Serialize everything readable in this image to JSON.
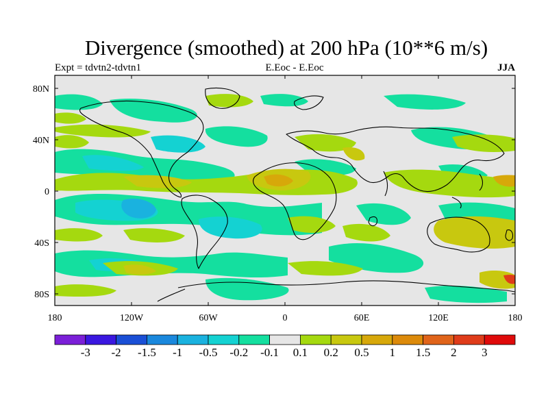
{
  "title": "Divergence (smoothed) at 200 hPa (10**6 m/s)",
  "subtitle_left": "Expt = tdvtn2-tdvtn1",
  "subtitle_center": "E.Eoc - E.Eoc",
  "subtitle_right": "JJA",
  "axes": {
    "lat_labels": [
      "80N",
      "40N",
      "0",
      "40S",
      "80S"
    ],
    "lon_labels": [
      "180",
      "120W",
      "60W",
      "0",
      "60E",
      "120E",
      "180"
    ]
  },
  "colorbar": {
    "colors": [
      "#7b1fd8",
      "#3a17e0",
      "#1a4fd6",
      "#1a88dd",
      "#1ab2df",
      "#14d2d2",
      "#14df9f",
      "#e6e6e6",
      "#a5d90f",
      "#c8c80f",
      "#d7a80a",
      "#dc8a0a",
      "#e0641a",
      "#df3c1a",
      "#df0a0a"
    ],
    "labels": [
      "-3",
      "-2",
      "-1.5",
      "-1",
      "-0.5",
      "-0.2",
      "-0.1",
      "0.1",
      "0.2",
      "0.5",
      "1",
      "1.5",
      "2",
      "3"
    ]
  }
}
